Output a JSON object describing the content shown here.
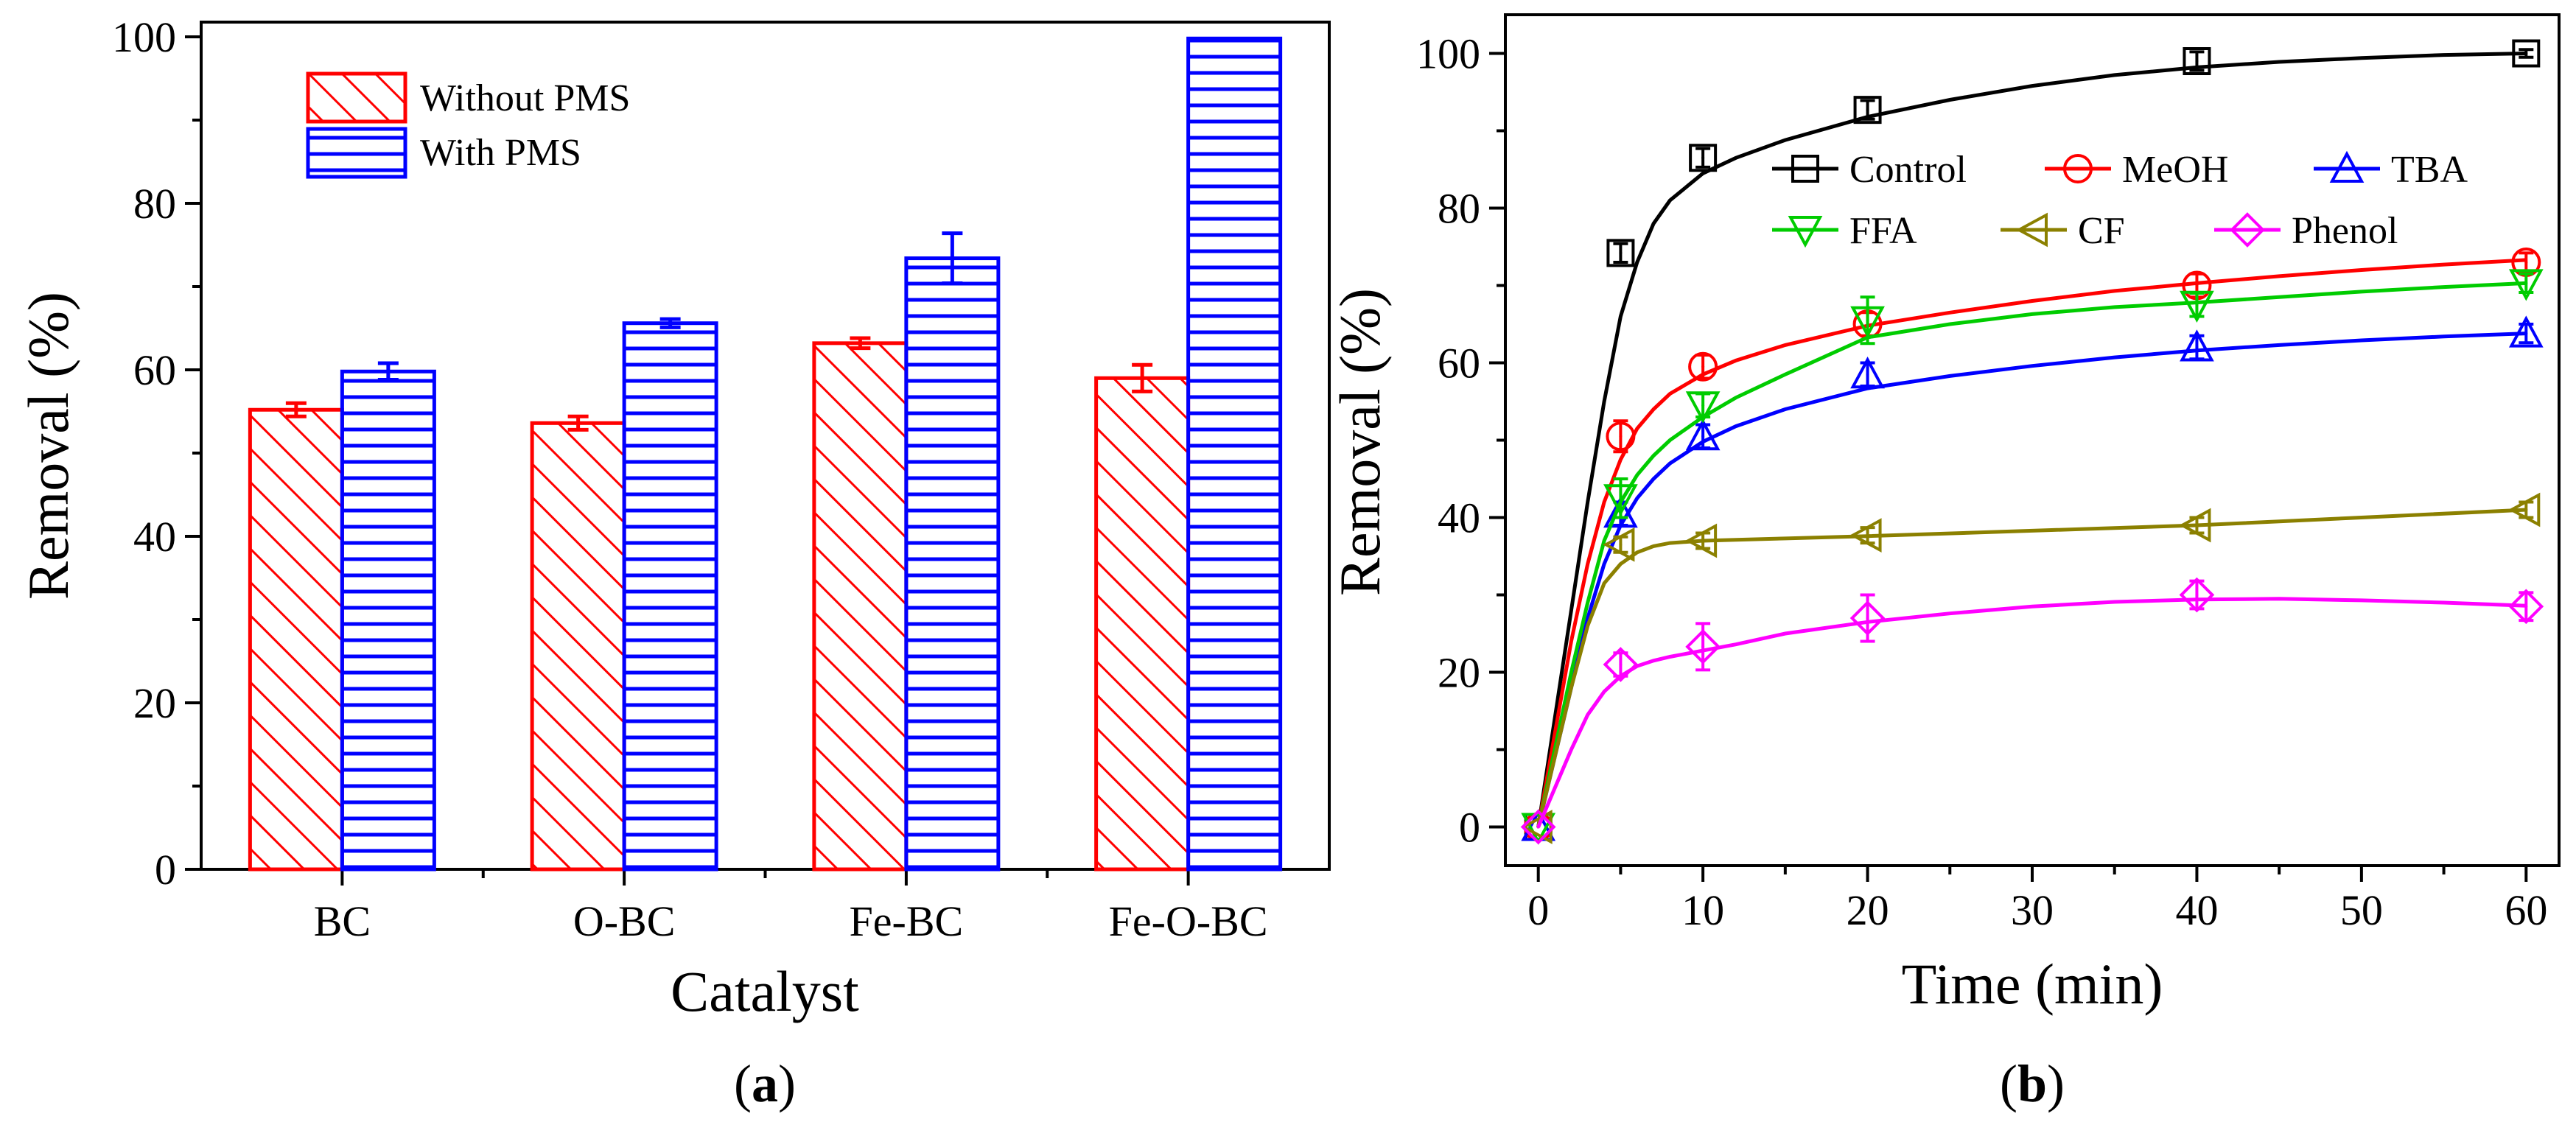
{
  "colors": {
    "red": "#ff0000",
    "blue": "#0000ff",
    "black": "#000000",
    "green": "#00cc00",
    "olive": "#8b8000",
    "magenta": "#ff00ff"
  },
  "chart_data": [
    {
      "type": "bar",
      "panel_label": "a",
      "xlabel": "Catalyst",
      "ylabel": "Removal (%)",
      "ylim": [
        0,
        100
      ],
      "yticks": [
        "0",
        "20",
        "40",
        "60",
        "80",
        "100"
      ],
      "categories": [
        "BC",
        "O-BC",
        "Fe-BC",
        "Fe-O-BC"
      ],
      "series": [
        {
          "name": "Without PMS",
          "color": "#ff0000",
          "hatch": "diagonal",
          "values": [
            55.2,
            53.6,
            63.2,
            59.0
          ],
          "errors": [
            0.8,
            0.8,
            0.6,
            1.6
          ]
        },
        {
          "name": "With PMS",
          "color": "#0000ff",
          "hatch": "horizontal",
          "values": [
            59.8,
            65.6,
            73.4,
            99.8
          ],
          "errors": [
            1.0,
            0.5,
            3.0,
            0
          ]
        }
      ],
      "legend_position": "top-left"
    },
    {
      "type": "line",
      "panel_label": "b",
      "xlabel": "Time (min)",
      "ylabel": "Removal (%)",
      "xlim": [
        -2,
        62
      ],
      "ylim": [
        -5,
        105
      ],
      "xticks": [
        "0",
        "10",
        "20",
        "30",
        "40",
        "50",
        "60"
      ],
      "yticks": [
        "0",
        "20",
        "40",
        "60",
        "80",
        "100"
      ],
      "x": [
        0,
        5,
        10,
        20,
        40,
        60
      ],
      "series": [
        {
          "name": "Control",
          "color": "#000000",
          "marker": "square",
          "values": [
            0,
            74.2,
            86.5,
            92.7,
            99.0,
            100.0
          ],
          "errors": [
            0,
            1.2,
            1.2,
            1.2,
            1.2,
            0.5
          ],
          "fit": [
            [
              0,
              0
            ],
            [
              1,
              14
            ],
            [
              2,
              28
            ],
            [
              3,
              42
            ],
            [
              4,
              55
            ],
            [
              5,
              66
            ],
            [
              6,
              73
            ],
            [
              7,
              78
            ],
            [
              8,
              81
            ],
            [
              10,
              84.5
            ],
            [
              12,
              86.5
            ],
            [
              15,
              88.8
            ],
            [
              20,
              91.8
            ],
            [
              25,
              94
            ],
            [
              30,
              95.8
            ],
            [
              35,
              97.2
            ],
            [
              40,
              98.2
            ],
            [
              45,
              98.9
            ],
            [
              50,
              99.4
            ],
            [
              55,
              99.8
            ],
            [
              60,
              100
            ]
          ]
        },
        {
          "name": "MeOH",
          "color": "#ff0000",
          "marker": "circle",
          "values": [
            0,
            50.5,
            59.5,
            65.0,
            70.0,
            73.0
          ],
          "errors": [
            0,
            2.0,
            1.5,
            1.5,
            1.5,
            1.2
          ],
          "fit": [
            [
              0,
              0
            ],
            [
              1,
              12
            ],
            [
              2,
              24
            ],
            [
              3,
              34
            ],
            [
              4,
              42
            ],
            [
              5,
              47.5
            ],
            [
              6,
              51.5
            ],
            [
              7,
              54
            ],
            [
              8,
              56
            ],
            [
              10,
              58.5
            ],
            [
              12,
              60.3
            ],
            [
              15,
              62.3
            ],
            [
              20,
              64.8
            ],
            [
              25,
              66.5
            ],
            [
              30,
              68
            ],
            [
              35,
              69.3
            ],
            [
              40,
              70.3
            ],
            [
              45,
              71.2
            ],
            [
              50,
              72
            ],
            [
              55,
              72.7
            ],
            [
              60,
              73.3
            ]
          ]
        },
        {
          "name": "TBA",
          "color": "#0000ff",
          "marker": "triangle-up",
          "values": [
            0,
            40.5,
            50.5,
            58.5,
            62.0,
            63.8
          ],
          "errors": [
            0,
            1.5,
            1.5,
            1.5,
            1.5,
            1.2
          ],
          "fit": [
            [
              0,
              0
            ],
            [
              1,
              9
            ],
            [
              2,
              18
            ],
            [
              3,
              27
            ],
            [
              4,
              34
            ],
            [
              5,
              39
            ],
            [
              6,
              42.5
            ],
            [
              7,
              45
            ],
            [
              8,
              47
            ],
            [
              10,
              49.8
            ],
            [
              12,
              51.8
            ],
            [
              15,
              54
            ],
            [
              20,
              56.7
            ],
            [
              25,
              58.3
            ],
            [
              30,
              59.6
            ],
            [
              35,
              60.7
            ],
            [
              40,
              61.6
            ],
            [
              45,
              62.3
            ],
            [
              50,
              62.9
            ],
            [
              55,
              63.4
            ],
            [
              60,
              63.8
            ]
          ]
        },
        {
          "name": "FFA",
          "color": "#00cc00",
          "marker": "triangle-down",
          "values": [
            0,
            42.5,
            54.5,
            65.5,
            67.5,
            70.3
          ],
          "errors": [
            0,
            2.5,
            1.5,
            3.0,
            1.5,
            1.2
          ],
          "fit": [
            [
              0,
              0
            ],
            [
              1,
              10
            ],
            [
              2,
              20
            ],
            [
              3,
              29
            ],
            [
              4,
              37
            ],
            [
              5,
              42
            ],
            [
              6,
              45.5
            ],
            [
              7,
              48
            ],
            [
              8,
              50
            ],
            [
              10,
              53
            ],
            [
              12,
              55.5
            ],
            [
              15,
              58.5
            ],
            [
              20,
              63.3
            ],
            [
              25,
              65
            ],
            [
              30,
              66.3
            ],
            [
              35,
              67.2
            ],
            [
              40,
              67.8
            ],
            [
              45,
              68.5
            ],
            [
              50,
              69.2
            ],
            [
              55,
              69.8
            ],
            [
              60,
              70.3
            ]
          ]
        },
        {
          "name": "CF",
          "color": "#8b8000",
          "marker": "triangle-left",
          "values": [
            0,
            36.5,
            37.0,
            37.7,
            39.0,
            41.0
          ],
          "errors": [
            0,
            1.0,
            1.0,
            1.0,
            1.0,
            1.0
          ],
          "fit": [
            [
              0,
              0
            ],
            [
              1,
              9
            ],
            [
              2,
              18
            ],
            [
              3,
              26
            ],
            [
              4,
              31.5
            ],
            [
              5,
              34
            ],
            [
              6,
              35.5
            ],
            [
              7,
              36.3
            ],
            [
              8,
              36.7
            ],
            [
              10,
              37
            ],
            [
              15,
              37.3
            ],
            [
              20,
              37.6
            ],
            [
              30,
              38.3
            ],
            [
              40,
              39
            ],
            [
              50,
              40
            ],
            [
              60,
              41
            ]
          ]
        },
        {
          "name": "Phenol",
          "color": "#ff00ff",
          "marker": "diamond",
          "values": [
            0,
            21.0,
            23.3,
            27.0,
            30.0,
            28.5
          ],
          "errors": [
            0,
            1.5,
            3.0,
            3.0,
            1.8,
            1.8
          ],
          "fit": [
            [
              0,
              0
            ],
            [
              1,
              5
            ],
            [
              2,
              10
            ],
            [
              3,
              14.5
            ],
            [
              4,
              17.5
            ],
            [
              5,
              19.5
            ],
            [
              6,
              20.8
            ],
            [
              7,
              21.5
            ],
            [
              8,
              22
            ],
            [
              10,
              22.8
            ],
            [
              12,
              23.6
            ],
            [
              15,
              25
            ],
            [
              20,
              26.5
            ],
            [
              25,
              27.6
            ],
            [
              30,
              28.5
            ],
            [
              35,
              29.1
            ],
            [
              40,
              29.4
            ],
            [
              45,
              29.5
            ],
            [
              50,
              29.3
            ],
            [
              55,
              29
            ],
            [
              60,
              28.6
            ]
          ]
        }
      ],
      "legend_position": "top-right"
    }
  ]
}
